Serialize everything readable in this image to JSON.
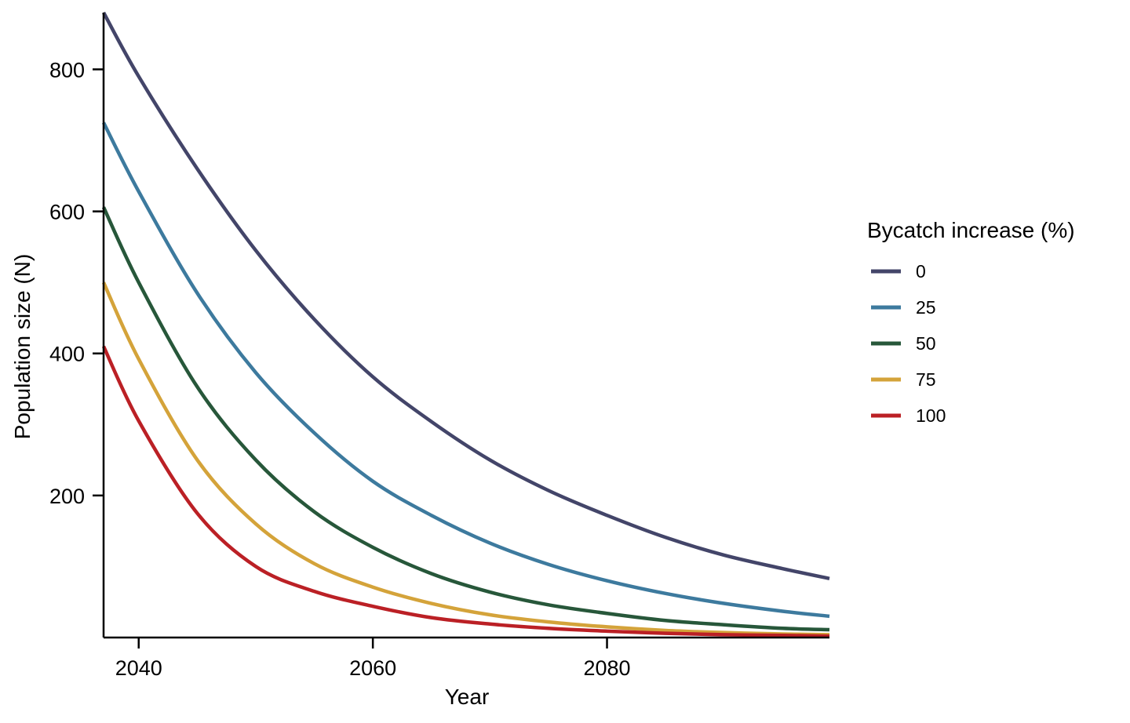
{
  "chart_data": {
    "type": "line",
    "xlabel": "Year",
    "ylabel": "Population size (N)",
    "xlim": [
      2037,
      2099
    ],
    "ylim": [
      0,
      880
    ],
    "xticks": [
      2040,
      2060,
      2080
    ],
    "yticks": [
      200,
      400,
      600,
      800
    ],
    "grid": false,
    "legend": {
      "title": "Bycatch increase (%)",
      "placement": "right"
    },
    "x": [
      2037,
      2040,
      2045,
      2050,
      2055,
      2060,
      2065,
      2070,
      2075,
      2080,
      2085,
      2090,
      2095,
      2099
    ],
    "series": [
      {
        "name": "0",
        "color": "#434569",
        "values": [
          880,
          790,
          660,
          545,
          448,
          367,
          304,
          250,
          207,
          172,
          141,
          116,
          97,
          83
        ]
      },
      {
        "name": "25",
        "color": "#3D7A9E",
        "values": [
          725,
          628,
          485,
          373,
          288,
          220,
          172,
          133,
          103,
          80,
          62,
          48,
          37,
          30
        ]
      },
      {
        "name": "50",
        "color": "#27573A",
        "values": [
          606,
          500,
          353,
          250,
          177,
          127,
          90,
          64,
          46,
          34,
          24,
          18,
          13,
          11
        ]
      },
      {
        "name": "75",
        "color": "#D4A33A",
        "values": [
          500,
          392,
          250,
          160,
          104,
          71,
          48,
          32,
          22,
          15,
          10,
          7,
          5,
          4
        ]
      },
      {
        "name": "100",
        "color": "#BB2025",
        "values": [
          410,
          305,
          175,
          100,
          65,
          44,
          28,
          19,
          13,
          9,
          6,
          4,
          3,
          2
        ]
      }
    ]
  }
}
